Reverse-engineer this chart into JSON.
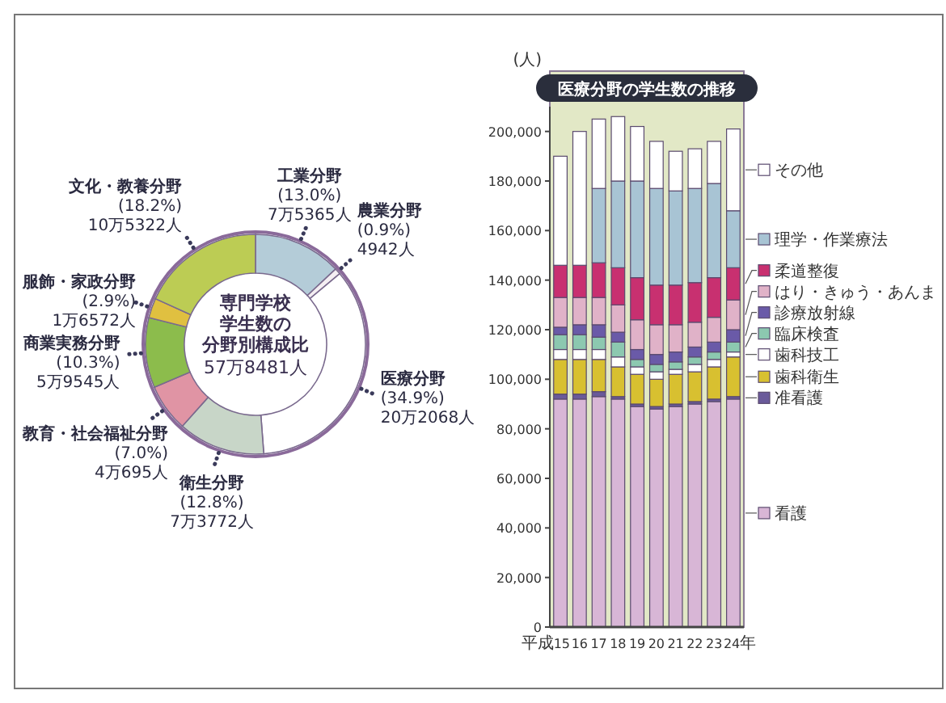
{
  "chart_data": [
    {
      "type": "donut",
      "title": "専門学校学生数の分野別構成比",
      "annotations": [
        "57万8481人"
      ],
      "categories": [
        "工業分野",
        "農業分野",
        "医療分野",
        "衛生分野",
        "教育・社会福祉分野",
        "商業実務分野",
        "服飾・家政分野",
        "文化・教養分野"
      ],
      "values": [
        13.0,
        0.9,
        34.9,
        12.8,
        7.0,
        10.3,
        2.9,
        18.2
      ],
      "value_labels": [
        "(13.0%) 7万5365人",
        "(0.9%) 4942人",
        "(34.9%) 20万2068人",
        "(12.8%) 7万3772人",
        "(7.0%) 4万695人",
        "(10.3%) 5万9545人",
        "(2.9%) 1万6572人",
        "(18.2%) 10万5322人"
      ],
      "colors": [
        "#b4ccd8",
        "#f4eef2",
        "#ffffff",
        "#c8d6c8",
        "#e094a4",
        "#8cbc4c",
        "#e0c040",
        "#bccc54"
      ]
    },
    {
      "type": "bar",
      "stacked": true,
      "title": "医療分野の学生数の推移",
      "ylabel": "(人)",
      "legend": "right",
      "grid": false,
      "categories": [
        "平成15",
        "16",
        "17",
        "18",
        "19",
        "20",
        "21",
        "22",
        "23",
        "24年"
      ],
      "ylim": [
        0,
        210000
      ],
      "yticks": [
        0,
        {
          "value": 20000,
          "label": "20,000"
        },
        {
          "value": 40000,
          "label": "40,000"
        },
        {
          "value": 60000,
          "label": "60,000"
        },
        {
          "value": 80000,
          "label": "80,000"
        },
        {
          "value": 100000,
          "label": "100,000"
        },
        {
          "value": 120000,
          "label": "120,000"
        },
        {
          "value": 140000,
          "label": "140,000"
        },
        {
          "value": 160000,
          "label": "160,000"
        },
        {
          "value": 180000,
          "label": "180,000"
        },
        {
          "value": 200000,
          "label": "200,000"
        }
      ],
      "series": [
        {
          "name": "看護",
          "color": "#d8b6d6",
          "values": [
            92000,
            92000,
            93000,
            92000,
            89000,
            88000,
            89000,
            90000,
            91000,
            92000
          ]
        },
        {
          "name": "准看護",
          "color": "#6a5a9a",
          "values": [
            2000,
            2000,
            2000,
            1000,
            1000,
            1000,
            1000,
            1000,
            1000,
            1000
          ]
        },
        {
          "name": "歯科衛生",
          "color": "#d8c030",
          "values": [
            14000,
            14000,
            13000,
            12000,
            12000,
            11000,
            12000,
            12000,
            13000,
            16000
          ]
        },
        {
          "name": "歯科技工",
          "color": "#ffffff",
          "values": [
            4000,
            4000,
            4000,
            4000,
            3000,
            3000,
            2000,
            3000,
            3000,
            2000
          ]
        },
        {
          "name": "臨床検査",
          "color": "#8cc8b0",
          "values": [
            6000,
            6000,
            5000,
            6000,
            3000,
            3000,
            3000,
            3000,
            3000,
            4000
          ]
        },
        {
          "name": "診療放射線",
          "color": "#6a5aa8",
          "values": [
            3000,
            4000,
            5000,
            4000,
            4000,
            4000,
            4000,
            4000,
            4000,
            5000
          ]
        },
        {
          "name": "はり・きゅう・あんま",
          "color": "#e0b2c8",
          "values": [
            12000,
            11000,
            11000,
            11000,
            12000,
            12000,
            11000,
            10000,
            10000,
            12000
          ]
        },
        {
          "name": "柔道整復",
          "color": "#c83070",
          "values": [
            13000,
            13000,
            14000,
            15000,
            17000,
            16000,
            16000,
            16000,
            16000,
            13000
          ]
        },
        {
          "name": "理学・作業療法",
          "color": "#a8c4d4",
          "values": [
            0,
            0,
            30000,
            35000,
            39000,
            39000,
            38000,
            38000,
            38000,
            23000
          ]
        },
        {
          "name": "その他",
          "color": "#ffffff",
          "values": [
            44000,
            54000,
            28000,
            26000,
            22000,
            19000,
            16000,
            16000,
            17000,
            33000
          ]
        }
      ]
    }
  ]
}
